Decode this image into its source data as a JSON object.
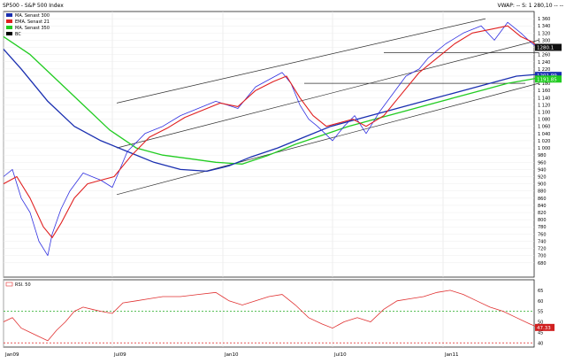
{
  "header": {
    "title": "SP500 - S&P 500 Index",
    "vwap": "VWAP: -- S: 1 280,10 -- --"
  },
  "colors": {
    "price": "#3030e0",
    "ema21": "#e02020",
    "ma300": "#1a2fb0",
    "ma350": "#22cc22",
    "channel": "#303030",
    "rsi": "#e03030",
    "rsi_upper_ref": "#22aa22",
    "rsi_lower_ref": "#dd2222",
    "background": "#ffffff"
  },
  "chart_data": [
    {
      "type": "line",
      "ylim": [
        640,
        1380
      ],
      "xlim": [
        0,
        600
      ],
      "x_ticks": [
        {
          "x": 0,
          "label": "Jan09"
        },
        {
          "x": 123,
          "label": "Jul09"
        },
        {
          "x": 248,
          "label": "Jan10"
        },
        {
          "x": 372,
          "label": "Jul10"
        },
        {
          "x": 497,
          "label": "Jan11"
        }
      ],
      "y_ticks": [
        680,
        700,
        720,
        740,
        760,
        780,
        800,
        820,
        840,
        860,
        880,
        900,
        920,
        940,
        960,
        980,
        1000,
        1020,
        1040,
        1060,
        1080,
        1100,
        1120,
        1140,
        1160,
        1180,
        1200,
        1220,
        1240,
        1260,
        1280,
        1300,
        1320,
        1340,
        1360
      ],
      "legend": [
        {
          "label": "MA. Senast 300",
          "color": "#1a2fb0"
        },
        {
          "label": "EMA. Senast 21",
          "color": "#e02020"
        },
        {
          "label": "MA. Senast 350",
          "color": "#22cc22"
        },
        {
          "label": "BC",
          "color": "#000000"
        }
      ],
      "series": [
        {
          "name": "SP500 - S&P 500 Index",
          "role": "price",
          "x": [
            0,
            10,
            20,
            30,
            40,
            50,
            55,
            65,
            75,
            90,
            100,
            110,
            123,
            140,
            160,
            180,
            200,
            220,
            240,
            265,
            285,
            300,
            315,
            325,
            335,
            345,
            355,
            372,
            385,
            397,
            410,
            425,
            440,
            455,
            470,
            480,
            490,
            500,
            520,
            540,
            555,
            570,
            585,
            598,
            605
          ],
          "values": [
            920,
            940,
            860,
            820,
            740,
            700,
            760,
            830,
            880,
            930,
            920,
            910,
            890,
            990,
            1040,
            1060,
            1090,
            1110,
            1130,
            1110,
            1170,
            1190,
            1210,
            1180,
            1120,
            1080,
            1060,
            1020,
            1060,
            1090,
            1040,
            1100,
            1150,
            1200,
            1220,
            1250,
            1270,
            1290,
            1320,
            1340,
            1300,
            1350,
            1320,
            1290,
            1280
          ]
        },
        {
          "name": "EMA. Senast 21",
          "role": "ema21",
          "x": [
            0,
            15,
            30,
            45,
            55,
            65,
            80,
            95,
            110,
            125,
            145,
            165,
            185,
            205,
            225,
            245,
            265,
            285,
            305,
            320,
            335,
            350,
            365,
            380,
            395,
            410,
            430,
            450,
            470,
            490,
            510,
            530,
            550,
            570,
            585,
            598,
            605
          ],
          "values": [
            900,
            920,
            860,
            780,
            750,
            790,
            860,
            900,
            910,
            920,
            980,
            1030,
            1055,
            1085,
            1105,
            1125,
            1115,
            1160,
            1185,
            1200,
            1140,
            1090,
            1060,
            1070,
            1080,
            1060,
            1090,
            1150,
            1210,
            1250,
            1290,
            1320,
            1330,
            1340,
            1310,
            1295,
            1280
          ]
        },
        {
          "name": "MA. Senast 300",
          "role": "ma300",
          "x": [
            0,
            20,
            50,
            80,
            110,
            140,
            170,
            200,
            230,
            255,
            280,
            310,
            340,
            370,
            400,
            430,
            460,
            490,
            520,
            550,
            580,
            605
          ],
          "values": [
            1275,
            1220,
            1130,
            1060,
            1020,
            990,
            960,
            940,
            935,
            950,
            975,
            1000,
            1030,
            1060,
            1080,
            1100,
            1120,
            1140,
            1160,
            1180,
            1200,
            1205
          ]
        },
        {
          "name": "MA. Senast 350",
          "role": "ma350",
          "x": [
            0,
            30,
            60,
            90,
            120,
            150,
            180,
            210,
            240,
            270,
            300,
            330,
            360,
            390,
            420,
            450,
            480,
            510,
            540,
            570,
            605
          ],
          "values": [
            1310,
            1260,
            1190,
            1120,
            1050,
            1000,
            980,
            970,
            960,
            955,
            980,
            1010,
            1035,
            1060,
            1080,
            1100,
            1120,
            1140,
            1160,
            1180,
            1195
          ]
        }
      ],
      "channel_lines": [
        {
          "x": [
            128,
            545
          ],
          "values": [
            1125,
            1360
          ]
        },
        {
          "x": [
            128,
            605
          ],
          "values": [
            870,
            1180
          ]
        },
        {
          "x": [
            128,
            605
          ],
          "values": [
            1000,
            1300
          ]
        },
        {
          "x": [
            430,
            605
          ],
          "values": [
            1265,
            1265
          ]
        },
        {
          "x": [
            340,
            590
          ],
          "values": [
            1180,
            1180
          ]
        }
      ],
      "last_value_badges": [
        {
          "label": "1280.1",
          "value": 1280.1
        },
        {
          "label": "1201.99",
          "value": 1201.99
        },
        {
          "label": "1191.85",
          "value": 1191.85
        }
      ]
    },
    {
      "type": "line",
      "ylim": [
        38,
        70
      ],
      "xlim": [
        0,
        600
      ],
      "y_ticks": [
        40,
        45,
        50,
        55,
        60,
        65
      ],
      "legend": [
        {
          "label": "RSI. 50",
          "color": "#e03030"
        }
      ],
      "reference_lines": [
        {
          "value": 55,
          "color": "#22aa22"
        },
        {
          "value": 40,
          "color": "#dd2222"
        }
      ],
      "series": [
        {
          "name": "RSI. 50",
          "role": "rsi",
          "x": [
            0,
            10,
            20,
            30,
            40,
            50,
            60,
            70,
            80,
            90,
            100,
            110,
            123,
            135,
            150,
            165,
            180,
            200,
            220,
            240,
            255,
            270,
            285,
            300,
            315,
            330,
            345,
            360,
            372,
            385,
            400,
            415,
            430,
            445,
            460,
            475,
            490,
            505,
            520,
            535,
            550,
            565,
            580,
            595,
            605
          ],
          "values": [
            50,
            52,
            47,
            45,
            43,
            41,
            46,
            50,
            55,
            57,
            56,
            55,
            54,
            59,
            60,
            61,
            62,
            62,
            63,
            64,
            60,
            58,
            60,
            62,
            63,
            58,
            52,
            49,
            47,
            50,
            52,
            50,
            56,
            60,
            61,
            62,
            64,
            65,
            63,
            60,
            57,
            55,
            52,
            49,
            47.3
          ]
        }
      ],
      "last_value_badges": [
        {
          "label": "47.33",
          "value": 47.33
        }
      ]
    }
  ]
}
